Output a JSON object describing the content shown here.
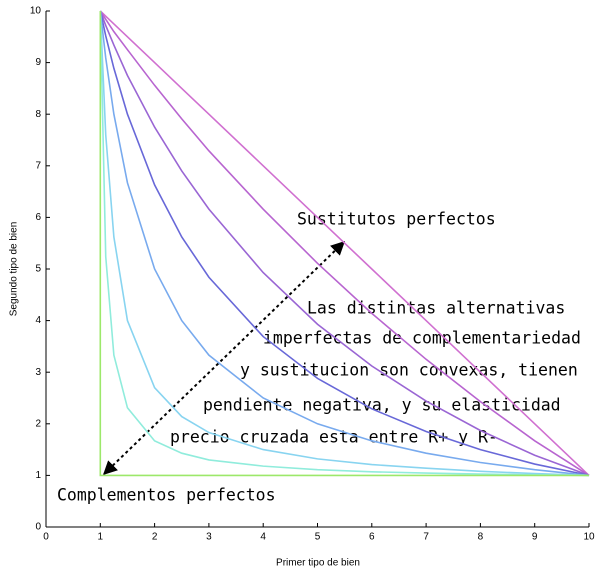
{
  "chart_data": {
    "type": "line",
    "x_label": "Primer tipo de bien",
    "y_label": "Segundo tipo de bien",
    "xlim": [
      0,
      10
    ],
    "ylim": [
      0,
      10
    ],
    "xticks": [
      0,
      1,
      2,
      3,
      4,
      5,
      6,
      7,
      8,
      9,
      10
    ],
    "yticks": [
      0,
      1,
      2,
      3,
      4,
      5,
      6,
      7,
      8,
      9,
      10
    ],
    "series": [
      {
        "color": "#d070d0",
        "x": [
          1,
          1.1,
          1.25,
          1.5,
          2,
          2.5,
          3,
          4,
          5,
          6,
          7,
          8,
          9,
          10
        ],
        "values": [
          10,
          9.9,
          9.75,
          9.5,
          9,
          8.5,
          8,
          7,
          6,
          5,
          4,
          3,
          2,
          1
        ]
      },
      {
        "color": "#b865d0",
        "x": [
          1,
          1.1,
          1.25,
          1.5,
          2,
          2.5,
          3,
          4,
          5,
          6,
          7,
          8,
          9,
          10
        ],
        "values": [
          10,
          9.84,
          9.6,
          9.25,
          8.56,
          7.91,
          7.29,
          6.16,
          5.11,
          4.14,
          3.25,
          2.43,
          1.67,
          1
        ]
      },
      {
        "color": "#9a66d4",
        "x": [
          1,
          1.1,
          1.25,
          1.5,
          2,
          2.5,
          3,
          4,
          5,
          6,
          7,
          8,
          9,
          10
        ],
        "values": [
          10,
          9.72,
          9.34,
          8.75,
          7.75,
          6.9,
          6.16,
          4.93,
          3.93,
          3.12,
          2.44,
          1.87,
          1.39,
          1
        ]
      },
      {
        "color": "#6868d8",
        "x": [
          1,
          1.1,
          1.25,
          1.5,
          2,
          2.5,
          3,
          4,
          5,
          6,
          7,
          8,
          9,
          10
        ],
        "values": [
          10,
          9.52,
          8.89,
          8.0,
          6.63,
          5.62,
          4.84,
          3.69,
          2.88,
          2.29,
          1.85,
          1.5,
          1.22,
          1
        ]
      },
      {
        "color": "#78aaee",
        "x": [
          1,
          1.1,
          1.25,
          1.5,
          2,
          2.5,
          3,
          4,
          5,
          6,
          7,
          8,
          9,
          10
        ],
        "values": [
          10,
          9.09,
          8,
          6.67,
          5,
          4,
          3.33,
          2.5,
          2,
          1.67,
          1.43,
          1.25,
          1.11,
          1
        ]
      },
      {
        "color": "#88d4f0",
        "x": [
          1,
          1.1,
          1.25,
          1.5,
          2,
          2.5,
          3,
          4,
          5,
          6,
          7,
          8,
          9,
          10
        ],
        "values": [
          10,
          7.6,
          5.62,
          4.0,
          2.7,
          2.14,
          1.83,
          1.5,
          1.32,
          1.21,
          1.14,
          1.08,
          1.035,
          1
        ]
      },
      {
        "color": "#90ecdc",
        "x": [
          1,
          1.1,
          1.25,
          1.5,
          2,
          2.5,
          3,
          4,
          5,
          6,
          7,
          8,
          9,
          10
        ],
        "values": [
          10,
          5.24,
          3.33,
          2.31,
          1.67,
          1.43,
          1.3,
          1.18,
          1.11,
          1.07,
          1.045,
          1.026,
          1.011,
          1
        ]
      },
      {
        "color": "#9ce86a",
        "x": [
          1,
          1,
          10
        ],
        "values": [
          10,
          1,
          1
        ]
      }
    ],
    "annotations": {
      "substitutes": "Sustitutos perfectos",
      "complements": "Complementos perfectos",
      "paragraph": [
        "Las distintas alternativas",
        "imperfectas de complementariedad",
        "y sustitucion son convexas, tienen",
        "pendiente negativa, y su elasticidad",
        "precio cruzada esta entre R+ y R-"
      ]
    }
  }
}
